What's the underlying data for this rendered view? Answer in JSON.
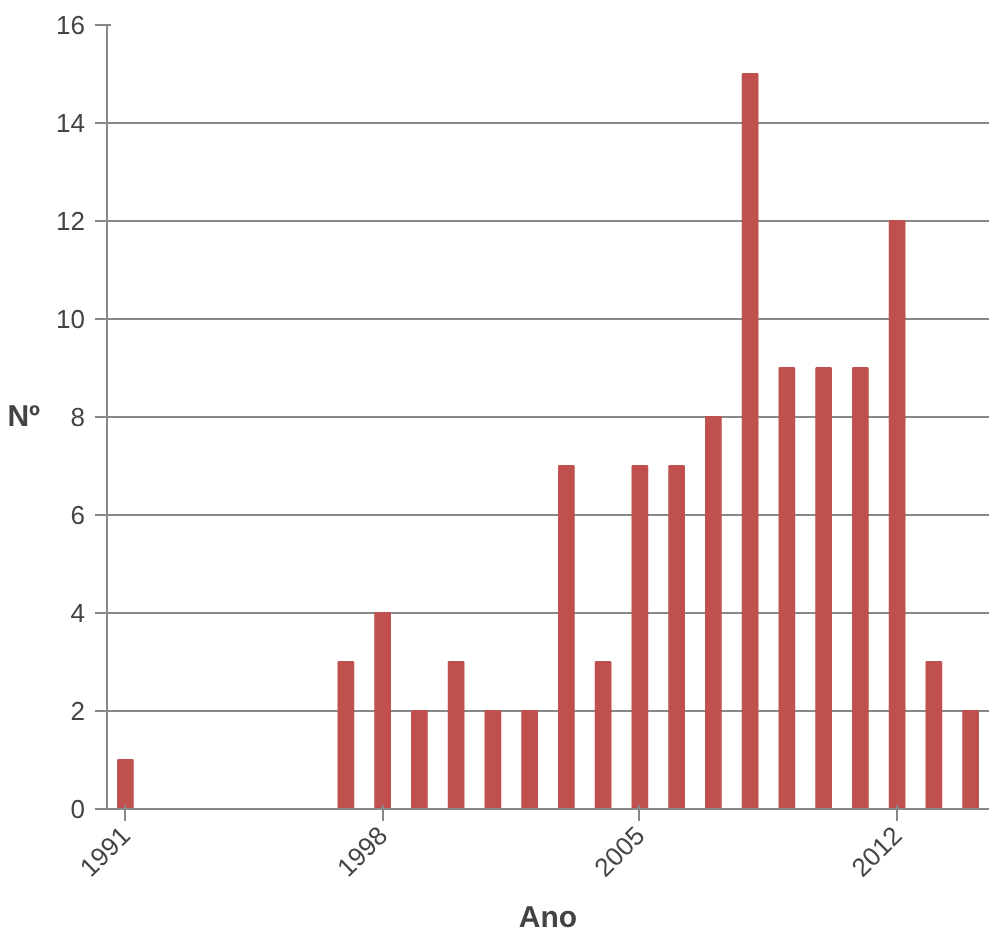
{
  "chart_data": {
    "type": "bar",
    "xlabel": "Ano",
    "ylabel": "Nº",
    "categories": [
      "1991",
      null,
      null,
      null,
      null,
      null,
      null,
      "1998",
      null,
      null,
      null,
      null,
      null,
      null,
      "2005",
      null,
      null,
      null,
      null,
      null,
      null,
      "2012",
      null,
      null
    ],
    "values": [
      1,
      0,
      0,
      0,
      0,
      0,
      3,
      4,
      2,
      3,
      2,
      2,
      7,
      3,
      7,
      7,
      8,
      15,
      9,
      9,
      9,
      12,
      3,
      2
    ],
    "color": "#c0504d",
    "ylim": [
      0,
      16
    ],
    "yticks": [
      0,
      2,
      4,
      6,
      8,
      10,
      12,
      14,
      16
    ],
    "grid": "y"
  }
}
